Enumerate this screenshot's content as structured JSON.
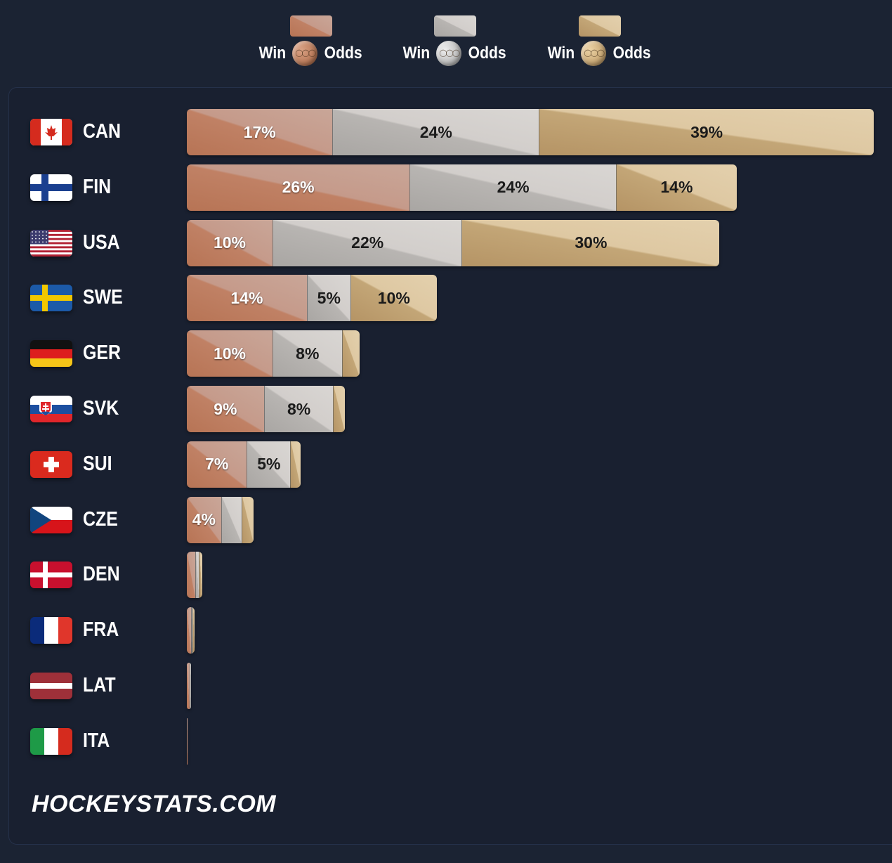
{
  "legend": [
    {
      "pre": "Win",
      "post": "Odds",
      "medal": "bronze-medal-icon",
      "color": "#c08165"
    },
    {
      "pre": "Win",
      "post": "Odds",
      "medal": "silver-medal-icon",
      "color": "#c9c6c3"
    },
    {
      "pre": "Win",
      "post": "Odds",
      "medal": "gold-medal-icon",
      "color": "#d8bd8f"
    }
  ],
  "colors": {
    "bronze": "#c08165",
    "silver": "#c9c6c3",
    "gold": "#d8bd8f",
    "background": "#1b2333"
  },
  "brand": "HOCKEYSTATS.COM",
  "chart_data": {
    "type": "bar",
    "orientation": "horizontal",
    "stacked": true,
    "categories": [
      "CAN",
      "FIN",
      "USA",
      "SWE",
      "GER",
      "SVK",
      "SUI",
      "CZE",
      "DEN",
      "FRA",
      "LAT",
      "ITA"
    ],
    "series": [
      {
        "key": "bronze",
        "values": [
          17,
          26,
          10,
          14,
          10,
          9,
          7,
          4,
          1,
          0.5,
          0.3,
          0.1
        ],
        "labels": [
          "17%",
          "26%",
          "10%",
          "14%",
          "10%",
          "9%",
          "7%",
          "4%",
          "",
          "",
          "",
          ""
        ]
      },
      {
        "key": "silver",
        "values": [
          24,
          24,
          22,
          5,
          8,
          8,
          5,
          2.3,
          0.3,
          0.1,
          0.1,
          0
        ],
        "labels": [
          "24%",
          "24%",
          "22%",
          "5%",
          "8%",
          "8%",
          "5%",
          "",
          "",
          "",
          "",
          ""
        ]
      },
      {
        "key": "gold",
        "values": [
          39,
          14,
          30,
          10,
          2,
          1.3,
          1.1,
          1.3,
          0.3,
          0.1,
          0,
          0
        ],
        "labels": [
          "39%",
          "14%",
          "30%",
          "10%",
          "",
          "",
          "",
          "",
          "",
          "",
          "",
          ""
        ]
      }
    ],
    "xlim": [
      0,
      80
    ],
    "legend_position": "top-center",
    "grid": false
  }
}
